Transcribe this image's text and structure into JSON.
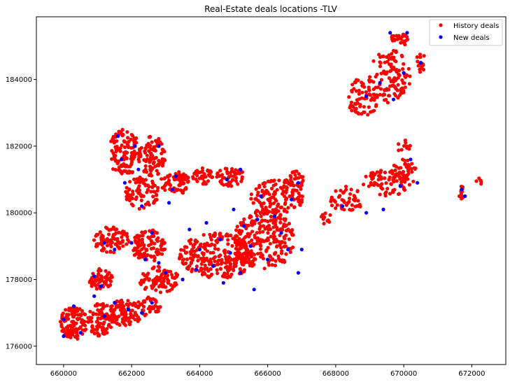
{
  "chart_data": {
    "type": "scatter",
    "title": "Real-Estate deals locations -TLV",
    "xlabel": "",
    "ylabel": "",
    "xlim": [
      659200,
      673000
    ],
    "ylim": [
      175450,
      185880
    ],
    "x_ticks": [
      660000,
      662000,
      664000,
      666000,
      668000,
      670000,
      672000
    ],
    "y_ticks": [
      176000,
      178000,
      180000,
      182000,
      184000
    ],
    "grid": false,
    "legend_position": "top-right",
    "series": [
      {
        "name": "History deals",
        "color": "#ff0000",
        "clusters": [
          {
            "cx": 660300,
            "cy": 176700,
            "rx": 400,
            "ry": 500,
            "n": 110
          },
          {
            "cx": 661100,
            "cy": 176800,
            "rx": 400,
            "ry": 500,
            "n": 90
          },
          {
            "cx": 661800,
            "cy": 177000,
            "rx": 500,
            "ry": 400,
            "n": 90
          },
          {
            "cx": 662500,
            "cy": 177200,
            "rx": 350,
            "ry": 300,
            "n": 40
          },
          {
            "cx": 661100,
            "cy": 178000,
            "rx": 350,
            "ry": 350,
            "n": 50
          },
          {
            "cx": 661400,
            "cy": 179200,
            "rx": 550,
            "ry": 400,
            "n": 80
          },
          {
            "cx": 662500,
            "cy": 179000,
            "rx": 500,
            "ry": 500,
            "n": 100
          },
          {
            "cx": 662800,
            "cy": 178000,
            "rx": 600,
            "ry": 400,
            "n": 90
          },
          {
            "cx": 661800,
            "cy": 181800,
            "rx": 500,
            "ry": 700,
            "n": 120
          },
          {
            "cx": 662600,
            "cy": 181700,
            "rx": 400,
            "ry": 600,
            "n": 90
          },
          {
            "cx": 662300,
            "cy": 180600,
            "rx": 500,
            "ry": 500,
            "n": 80
          },
          {
            "cx": 663300,
            "cy": 180900,
            "rx": 450,
            "ry": 350,
            "n": 70
          },
          {
            "cx": 664100,
            "cy": 181100,
            "rx": 300,
            "ry": 250,
            "n": 40
          },
          {
            "cx": 664900,
            "cy": 181100,
            "rx": 400,
            "ry": 300,
            "n": 50
          },
          {
            "cx": 664500,
            "cy": 178700,
            "rx": 1100,
            "ry": 700,
            "n": 260
          },
          {
            "cx": 665900,
            "cy": 179200,
            "rx": 900,
            "ry": 900,
            "n": 240
          },
          {
            "cx": 666300,
            "cy": 180500,
            "rx": 800,
            "ry": 500,
            "n": 130
          },
          {
            "cx": 666800,
            "cy": 181000,
            "rx": 300,
            "ry": 250,
            "n": 30
          },
          {
            "cx": 667700,
            "cy": 179800,
            "rx": 200,
            "ry": 200,
            "n": 10
          },
          {
            "cx": 668300,
            "cy": 180400,
            "rx": 500,
            "ry": 400,
            "n": 50
          },
          {
            "cx": 669500,
            "cy": 180900,
            "rx": 700,
            "ry": 400,
            "n": 80
          },
          {
            "cx": 670000,
            "cy": 181200,
            "rx": 400,
            "ry": 400,
            "n": 40
          },
          {
            "cx": 670000,
            "cy": 182000,
            "rx": 200,
            "ry": 200,
            "n": 10
          },
          {
            "cx": 668800,
            "cy": 183500,
            "rx": 500,
            "ry": 600,
            "n": 80
          },
          {
            "cx": 669600,
            "cy": 184100,
            "rx": 600,
            "ry": 800,
            "n": 110
          },
          {
            "cx": 669900,
            "cy": 185200,
            "rx": 300,
            "ry": 200,
            "n": 25
          },
          {
            "cx": 670500,
            "cy": 184500,
            "rx": 150,
            "ry": 300,
            "n": 15
          },
          {
            "cx": 671700,
            "cy": 180600,
            "rx": 100,
            "ry": 200,
            "n": 10
          },
          {
            "cx": 672200,
            "cy": 180900,
            "rx": 100,
            "ry": 200,
            "n": 5
          }
        ]
      },
      {
        "name": "New deals",
        "color": "#0000ff",
        "points": [
          [
            660000,
            176800
          ],
          [
            660300,
            177200
          ],
          [
            660500,
            176400
          ],
          [
            660900,
            177500
          ],
          [
            661200,
            176900
          ],
          [
            661500,
            177300
          ],
          [
            661900,
            177100
          ],
          [
            662300,
            177000
          ],
          [
            660900,
            178100
          ],
          [
            661100,
            177800
          ],
          [
            661200,
            179100
          ],
          [
            661500,
            178900
          ],
          [
            662000,
            179100
          ],
          [
            662400,
            178600
          ],
          [
            662800,
            178500
          ],
          [
            663000,
            178200
          ],
          [
            662600,
            179400
          ],
          [
            661700,
            181600
          ],
          [
            662100,
            182000
          ],
          [
            661600,
            182300
          ],
          [
            662200,
            181300
          ],
          [
            661800,
            180900
          ],
          [
            662800,
            182000
          ],
          [
            663300,
            181100
          ],
          [
            663100,
            180300
          ],
          [
            662300,
            180200
          ],
          [
            664200,
            179700
          ],
          [
            664600,
            179200
          ],
          [
            664400,
            178400
          ],
          [
            664900,
            178800
          ],
          [
            665200,
            178200
          ],
          [
            665500,
            179000
          ],
          [
            665700,
            179800
          ],
          [
            666200,
            179900
          ],
          [
            666400,
            179400
          ],
          [
            666600,
            178900
          ],
          [
            665000,
            180100
          ],
          [
            664800,
            181000
          ],
          [
            665200,
            181300
          ],
          [
            664000,
            178900
          ],
          [
            663900,
            178300
          ],
          [
            665800,
            180500
          ],
          [
            666700,
            180400
          ],
          [
            666900,
            180900
          ],
          [
            663700,
            179500
          ],
          [
            665300,
            179600
          ],
          [
            666000,
            178600
          ],
          [
            667000,
            178900
          ],
          [
            668200,
            180200
          ],
          [
            668900,
            180000
          ],
          [
            669400,
            180100
          ],
          [
            669900,
            180800
          ],
          [
            670400,
            180900
          ],
          [
            670200,
            181600
          ],
          [
            668900,
            183500
          ],
          [
            669300,
            183900
          ],
          [
            669700,
            183400
          ],
          [
            670000,
            184200
          ],
          [
            669600,
            185400
          ],
          [
            670100,
            185400
          ],
          [
            670500,
            184500
          ],
          [
            671700,
            180700
          ],
          [
            671800,
            180500
          ],
          [
            660000,
            176300
          ],
          [
            663500,
            178000
          ],
          [
            664700,
            177900
          ],
          [
            665600,
            177700
          ],
          [
            666900,
            178200
          ],
          [
            662600,
            177300
          ],
          [
            663200,
            180700
          ]
        ]
      }
    ]
  }
}
